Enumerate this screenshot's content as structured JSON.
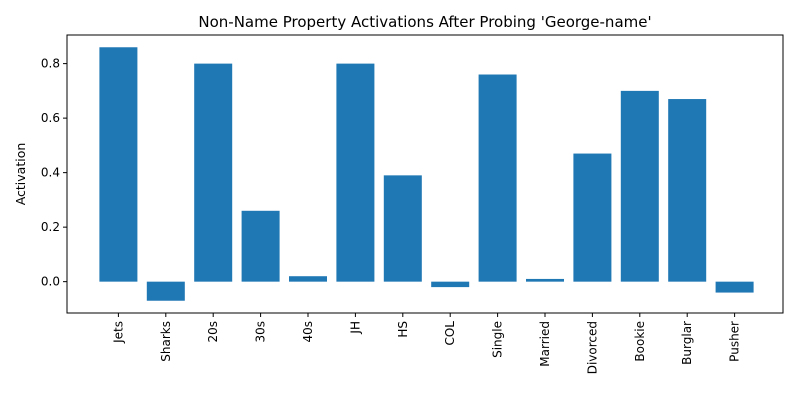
{
  "chart_data": {
    "type": "bar",
    "title": "Non-Name Property Activations After Probing 'George-name'",
    "xlabel": "",
    "ylabel": "Activation",
    "categories": [
      "Jets",
      "Sharks",
      "20s",
      "30s",
      "40s",
      "JH",
      "HS",
      "COL",
      "Single",
      "Married",
      "Divorced",
      "Bookie",
      "Burglar",
      "Pusher"
    ],
    "values": [
      0.86,
      -0.07,
      0.8,
      0.26,
      0.02,
      0.8,
      0.39,
      -0.02,
      0.76,
      0.01,
      0.47,
      0.7,
      0.67,
      -0.04
    ],
    "ylim": [
      -0.115,
      0.905
    ],
    "yticks": [
      0.0,
      0.2,
      0.4,
      0.6,
      0.8
    ],
    "ytick_labels": [
      "0.0",
      "0.2",
      "0.4",
      "0.6",
      "0.8"
    ],
    "bar_color": "#1f77b4",
    "grid": false,
    "legend": "none"
  }
}
